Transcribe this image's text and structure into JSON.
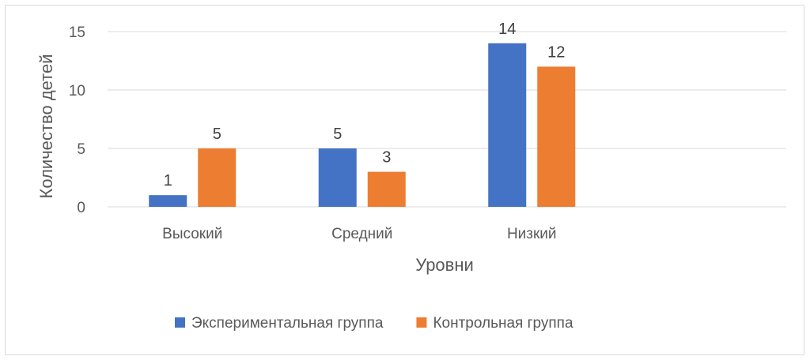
{
  "chart_data": {
    "type": "bar",
    "title": "",
    "xlabel": "Уровни",
    "ylabel": "Количество детей",
    "categories": [
      "Высокий",
      "Средний",
      "Низкий",
      ""
    ],
    "series": [
      {
        "name": "Экспериментальная группа",
        "values": [
          1,
          5,
          14,
          null
        ],
        "color": "#4472C4"
      },
      {
        "name": "Контрольная группа",
        "values": [
          5,
          3,
          12,
          null
        ],
        "color": "#ED7D31"
      }
    ],
    "ylim": [
      0,
      15
    ],
    "yticks": [
      0,
      5,
      10,
      15
    ],
    "grid": true,
    "data_labels": true,
    "legend_position": "bottom"
  }
}
